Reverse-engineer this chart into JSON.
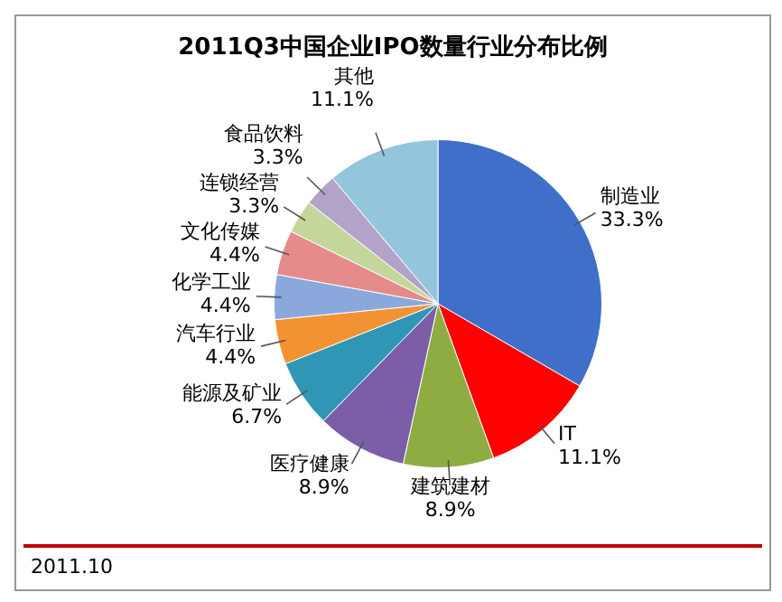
{
  "chart_data": {
    "type": "pie",
    "title": "2011Q3中国企业IPO数量行业分布比例",
    "categories": [
      "制造业",
      "IT",
      "建筑建材",
      "医疗健康",
      "能源及矿业",
      "汽车行业",
      "化学工业",
      "文化传媒",
      "连锁经营",
      "食品饮料",
      "其他"
    ],
    "values": [
      33.3,
      11.1,
      8.9,
      8.9,
      6.7,
      4.4,
      4.4,
      4.4,
      3.3,
      3.3,
      11.1
    ],
    "value_labels": [
      "33.3%",
      "11.1%",
      "8.9%",
      "8.9%",
      "6.7%",
      "4.4%",
      "4.4%",
      "4.4%",
      "3.3%",
      "3.3%",
      "11.1%"
    ],
    "colors": [
      "#3f6fc9",
      "#ff0000",
      "#8fac43",
      "#7b5ea7",
      "#2f97b5",
      "#f39233",
      "#8aa8dc",
      "#e58b8b",
      "#c4d79b",
      "#b4a3c8",
      "#93c5dc"
    ],
    "legend": false,
    "annotations": [
      "2011.10"
    ]
  }
}
